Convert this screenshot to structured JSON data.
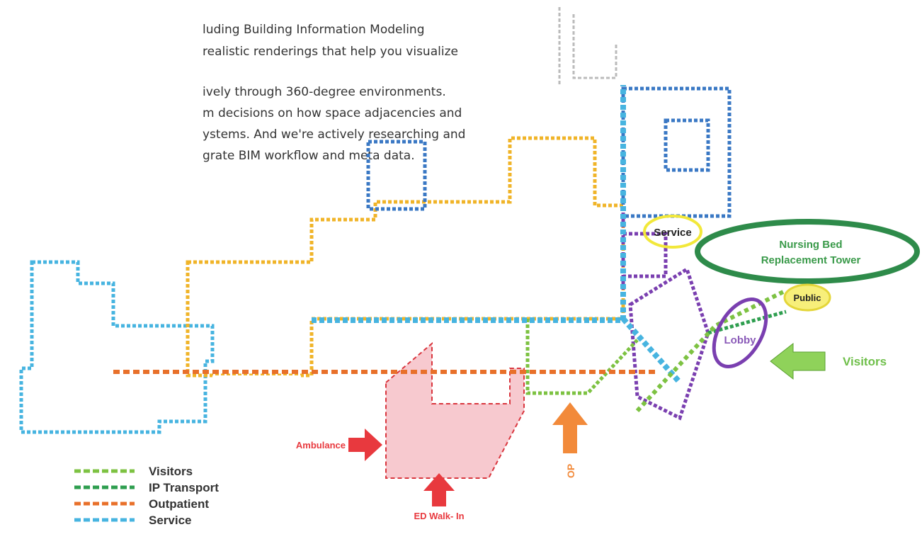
{
  "paragraph": {
    "lines": [
      "luding Building Information Modeling",
      "realistic renderings that help you visualize",
      "ively through 360-degree environments.",
      "m decisions on how space adjacencies and",
      "ystems. And we're actively researching and",
      "grate BIM workflow and meta data."
    ]
  },
  "diagram": {
    "labels": {
      "service": "Service",
      "tower": [
        "Nursing Bed",
        "Replacement Tower"
      ],
      "public": "Public",
      "lobby": "Lobby",
      "visitors": "Visitors",
      "ambulance": "Ambulance",
      "ed_walk_in": "ED Walk- In",
      "op": "OP"
    },
    "legend": [
      {
        "name": "Visitors",
        "color": "#7dc242"
      },
      {
        "name": "IP Transport",
        "color": "#2e9e4f"
      },
      {
        "name": "Outpatient",
        "color": "#e8702a"
      },
      {
        "name": "Service",
        "color": "#47b4e0"
      }
    ]
  }
}
